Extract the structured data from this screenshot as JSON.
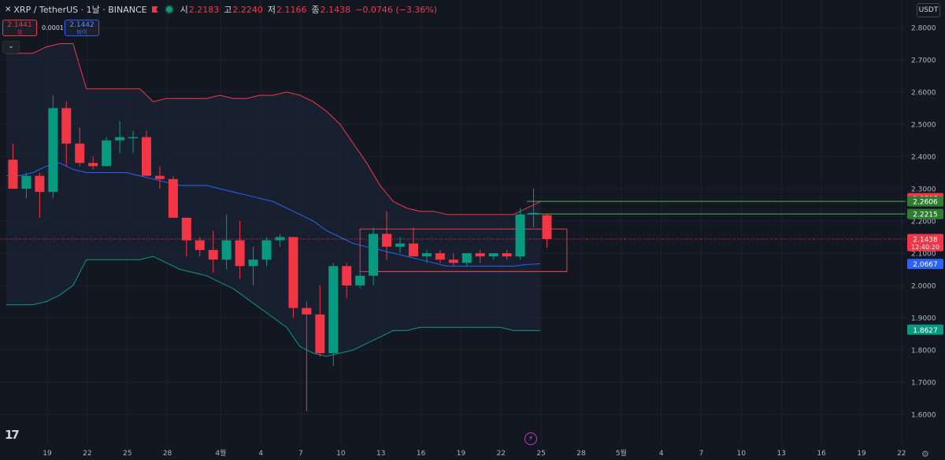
{
  "header": {
    "symbol": "XRP / TetherUS · 1날 · BINANCE",
    "open_label": "시",
    "open": "2.2183",
    "high_label": "고",
    "high": "2.2240",
    "low_label": "저",
    "low": "2.1166",
    "close_label": "종",
    "close": "2.1438",
    "change": "−0.0746 (−3.36%)"
  },
  "trade_panel": {
    "sell_price": "2.1441",
    "sell_label": "셀",
    "spread": "0.0001",
    "buy_price": "2.1442",
    "buy_label": "바이"
  },
  "currency": "USDT",
  "icons": [
    "x-icon",
    "flag-icon",
    "status-dot-icon",
    "chevron-down-icon",
    "tradingview-logo-icon",
    "lightning-icon",
    "settings-icon"
  ],
  "colors": {
    "background": "#131722",
    "up": "#089981",
    "down": "#f23645",
    "basis": "#2962ff",
    "upper_band": "#f23645",
    "lower_band": "#089981",
    "band_fill": "#1a2231",
    "price_line": "#f23645",
    "horizontal_lines": "#4caf50",
    "rectangle": "#e04050"
  },
  "price_labels": [
    {
      "text": "2.2707",
      "color": "#f23645"
    },
    {
      "text": "2.2606",
      "color": "#2e7d32"
    },
    {
      "text": "2.2215",
      "color": "#2e7d32"
    },
    {
      "text": "2.1438",
      "sub": "12:40:20",
      "color": "#f23645"
    },
    {
      "text": "2.0667",
      "color": "#2962ff"
    },
    {
      "text": "1.8627",
      "color": "#089981"
    }
  ],
  "chart_data": {
    "type": "candlestick",
    "y_axis_ticks": [
      "2.8000",
      "2.7000",
      "2.6000",
      "2.5000",
      "2.4000",
      "2.3000",
      "2.2000",
      "2.1000",
      "2.0000",
      "1.9000",
      "1.8000",
      "1.7000",
      "1.6000"
    ],
    "y_range": [
      1.55,
      2.83
    ],
    "x_axis_ticks": [
      {
        "i": 0,
        "label": "19"
      },
      {
        "i": 3,
        "label": "22"
      },
      {
        "i": 6,
        "label": "25"
      },
      {
        "i": 9,
        "label": "28"
      },
      {
        "i": 13,
        "label": "4월"
      },
      {
        "i": 16,
        "label": "4"
      },
      {
        "i": 19,
        "label": "7"
      },
      {
        "i": 22,
        "label": "10"
      },
      {
        "i": 25,
        "label": "13"
      },
      {
        "i": 28,
        "label": "16"
      },
      {
        "i": 31,
        "label": "19"
      },
      {
        "i": 34,
        "label": "22"
      },
      {
        "i": 37,
        "label": "25"
      },
      {
        "i": 40,
        "label": "28"
      },
      {
        "i": 43,
        "label": "5월"
      },
      {
        "i": 46,
        "label": "4"
      },
      {
        "i": 49,
        "label": "7"
      },
      {
        "i": 52,
        "label": "10"
      },
      {
        "i": 55,
        "label": "13"
      },
      {
        "i": 58,
        "label": "16"
      },
      {
        "i": 61,
        "label": "19"
      },
      {
        "i": 64,
        "label": "22"
      }
    ],
    "candles": [
      {
        "o": 2.39,
        "h": 2.44,
        "l": 2.3,
        "c": 2.3
      },
      {
        "o": 2.3,
        "h": 2.35,
        "l": 2.27,
        "c": 2.34
      },
      {
        "o": 2.34,
        "h": 2.35,
        "l": 2.21,
        "c": 2.29
      },
      {
        "o": 2.29,
        "h": 2.59,
        "l": 2.27,
        "c": 2.55
      },
      {
        "o": 2.55,
        "h": 2.57,
        "l": 2.37,
        "c": 2.44
      },
      {
        "o": 2.44,
        "h": 2.49,
        "l": 2.37,
        "c": 2.38
      },
      {
        "o": 2.38,
        "h": 2.4,
        "l": 2.36,
        "c": 2.37
      },
      {
        "o": 2.37,
        "h": 2.46,
        "l": 2.37,
        "c": 2.45
      },
      {
        "o": 2.45,
        "h": 2.51,
        "l": 2.41,
        "c": 2.46
      },
      {
        "o": 2.46,
        "h": 2.48,
        "l": 2.41,
        "c": 2.46
      },
      {
        "o": 2.46,
        "h": 2.48,
        "l": 2.34,
        "c": 2.34
      },
      {
        "o": 2.34,
        "h": 2.37,
        "l": 2.3,
        "c": 2.33
      },
      {
        "o": 2.33,
        "h": 2.34,
        "l": 2.21,
        "c": 2.21
      },
      {
        "o": 2.21,
        "h": 2.21,
        "l": 2.09,
        "c": 2.14
      },
      {
        "o": 2.14,
        "h": 2.15,
        "l": 2.09,
        "c": 2.11
      },
      {
        "o": 2.11,
        "h": 2.17,
        "l": 2.04,
        "c": 2.08
      },
      {
        "o": 2.08,
        "h": 2.22,
        "l": 2.05,
        "c": 2.14
      },
      {
        "o": 2.14,
        "h": 2.2,
        "l": 2.02,
        "c": 2.06
      },
      {
        "o": 2.06,
        "h": 2.12,
        "l": 2.0,
        "c": 2.08
      },
      {
        "o": 2.08,
        "h": 2.15,
        "l": 2.06,
        "c": 2.14
      },
      {
        "o": 2.14,
        "h": 2.16,
        "l": 2.12,
        "c": 2.15
      },
      {
        "o": 2.15,
        "h": 2.15,
        "l": 1.9,
        "c": 1.93
      },
      {
        "o": 1.93,
        "h": 1.95,
        "l": 1.61,
        "c": 1.91
      },
      {
        "o": 1.91,
        "h": 2.0,
        "l": 1.78,
        "c": 1.79
      },
      {
        "o": 1.79,
        "h": 2.07,
        "l": 1.75,
        "c": 2.06
      },
      {
        "o": 2.06,
        "h": 2.07,
        "l": 1.96,
        "c": 2.0
      },
      {
        "o": 2.0,
        "h": 2.05,
        "l": 1.99,
        "c": 2.03
      },
      {
        "o": 2.03,
        "h": 2.18,
        "l": 2.0,
        "c": 2.16
      },
      {
        "o": 2.16,
        "h": 2.23,
        "l": 2.08,
        "c": 2.12
      },
      {
        "o": 2.12,
        "h": 2.15,
        "l": 2.1,
        "c": 2.13
      },
      {
        "o": 2.13,
        "h": 2.18,
        "l": 2.09,
        "c": 2.09
      },
      {
        "o": 2.09,
        "h": 2.11,
        "l": 2.07,
        "c": 2.1
      },
      {
        "o": 2.1,
        "h": 2.11,
        "l": 2.07,
        "c": 2.08
      },
      {
        "o": 2.08,
        "h": 2.1,
        "l": 2.06,
        "c": 2.07
      },
      {
        "o": 2.07,
        "h": 2.1,
        "l": 2.06,
        "c": 2.1
      },
      {
        "o": 2.1,
        "h": 2.11,
        "l": 2.07,
        "c": 2.09
      },
      {
        "o": 2.09,
        "h": 2.1,
        "l": 2.08,
        "c": 2.1
      },
      {
        "o": 2.1,
        "h": 2.11,
        "l": 2.08,
        "c": 2.09
      },
      {
        "o": 2.09,
        "h": 2.24,
        "l": 2.08,
        "c": 2.22
      },
      {
        "o": 2.22,
        "h": 2.3,
        "l": 2.18,
        "c": 2.225
      },
      {
        "o": 2.218,
        "h": 2.224,
        "l": 2.117,
        "c": 2.144
      }
    ],
    "bollinger": {
      "upper": [
        2.72,
        2.72,
        2.72,
        2.74,
        2.75,
        2.75,
        2.61,
        2.61,
        2.61,
        2.61,
        2.61,
        2.57,
        2.58,
        2.58,
        2.58,
        2.58,
        2.59,
        2.58,
        2.58,
        2.59,
        2.59,
        2.6,
        2.59,
        2.57,
        2.54,
        2.5,
        2.44,
        2.38,
        2.31,
        2.26,
        2.24,
        2.23,
        2.23,
        2.22,
        2.22,
        2.22,
        2.22,
        2.22,
        2.22,
        2.24,
        2.26
      ],
      "basis": [
        2.34,
        2.34,
        2.35,
        2.37,
        2.38,
        2.36,
        2.35,
        2.35,
        2.35,
        2.35,
        2.34,
        2.33,
        2.32,
        2.31,
        2.31,
        2.31,
        2.3,
        2.29,
        2.28,
        2.27,
        2.26,
        2.24,
        2.22,
        2.2,
        2.17,
        2.15,
        2.13,
        2.12,
        2.11,
        2.1,
        2.09,
        2.08,
        2.07,
        2.06,
        2.06,
        2.06,
        2.06,
        2.06,
        2.06,
        2.065,
        2.067
      ],
      "lower": [
        1.94,
        1.94,
        1.94,
        1.95,
        1.97,
        2.0,
        2.08,
        2.08,
        2.08,
        2.08,
        2.08,
        2.09,
        2.07,
        2.05,
        2.04,
        2.03,
        2.01,
        1.99,
        1.96,
        1.93,
        1.9,
        1.87,
        1.81,
        1.79,
        1.78,
        1.79,
        1.8,
        1.82,
        1.84,
        1.86,
        1.86,
        1.87,
        1.87,
        1.87,
        1.87,
        1.87,
        1.87,
        1.87,
        1.86,
        1.86,
        1.86
      ]
    },
    "horizontal_lines": [
      {
        "from_index": 39,
        "price": 2.2606
      },
      {
        "from_index": 39,
        "price": 2.2215
      }
    ],
    "price_line": 2.1438,
    "rectangles": [
      {
        "i0": 26.5,
        "i1": 42,
        "p_top": 2.175,
        "p_bottom": 2.043
      },
      {
        "i0": 27.5,
        "i1": 42,
        "p_top": 2.043,
        "p_bottom": 2.043
      }
    ]
  }
}
